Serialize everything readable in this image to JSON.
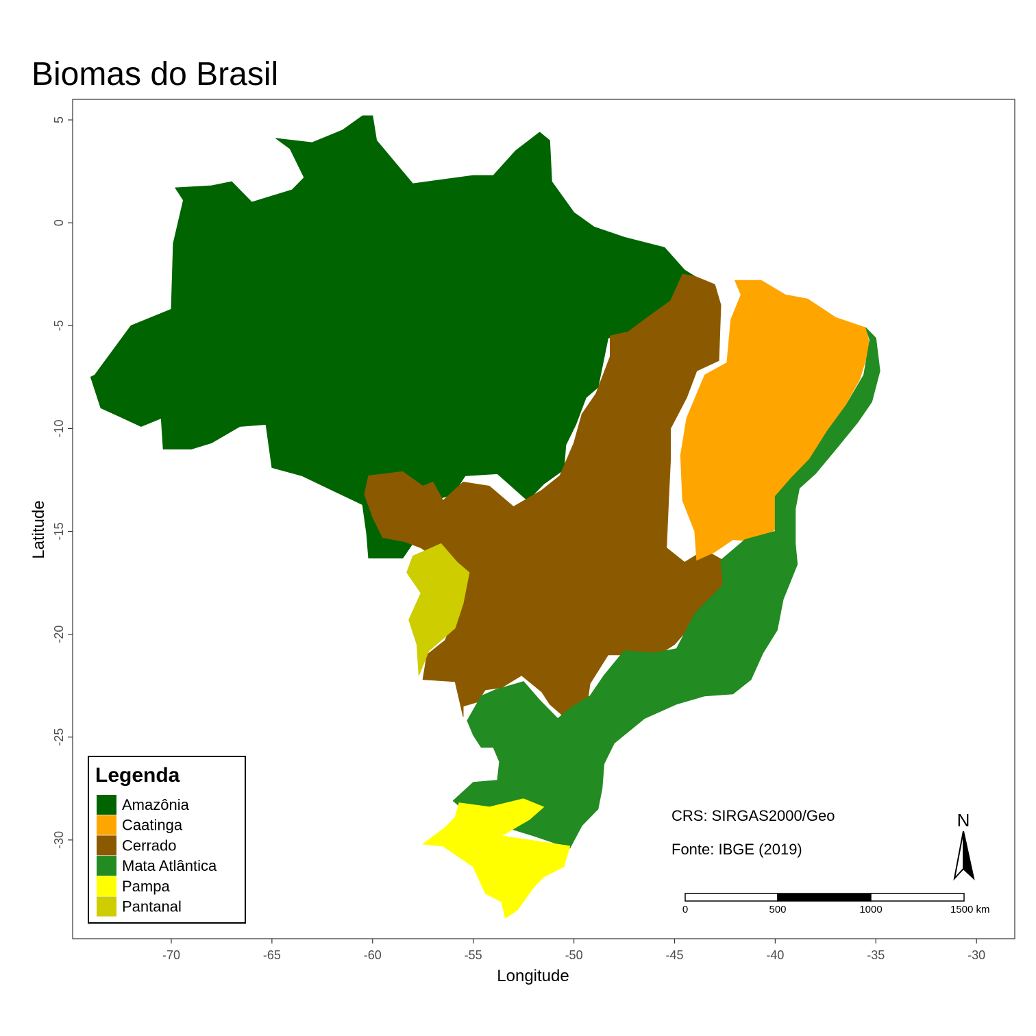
{
  "title": "Biomas do Brasil",
  "axes": {
    "xlabel": "Longitude",
    "ylabel": "Latitude",
    "xticks": [
      -70,
      -65,
      -60,
      -55,
      -50,
      -45,
      -40,
      -35,
      -30
    ],
    "yticks": [
      5,
      0,
      -5,
      -10,
      -15,
      -20,
      -25,
      -30
    ],
    "xlim": [
      -74.9,
      -28.1
    ],
    "ylim": [
      -34.8,
      6.0
    ]
  },
  "legend": {
    "title": "Legenda",
    "items": [
      {
        "label": "Amazônia",
        "color": "#006400"
      },
      {
        "label": "Caatinga",
        "color": "#FFA500"
      },
      {
        "label": "Cerrado",
        "color": "#8B5A00"
      },
      {
        "label": "Mata Atlântica",
        "color": "#228B22"
      },
      {
        "label": "Pampa",
        "color": "#FFFF00"
      },
      {
        "label": "Pantanal",
        "color": "#CDCD00"
      }
    ]
  },
  "annotations": {
    "crs": "CRS: SIRGAS2000/Geo",
    "source": "Fonte: IBGE (2019)"
  },
  "north_arrow": {
    "label": "N"
  },
  "scale_bar": {
    "labels": [
      "0",
      "500",
      "1000",
      "1500 km"
    ]
  },
  "chart_data": {
    "type": "map",
    "title": "Biomas do Brasil",
    "xlabel": "Longitude",
    "ylabel": "Latitude",
    "xlim": [
      -74.9,
      -28.1
    ],
    "ylim": [
      -34.8,
      6.0
    ],
    "regions": [
      {
        "name": "Amazônia",
        "color": "#006400",
        "coords": [
          [
            -73.8,
            -7.4
          ],
          [
            -72.0,
            -5.0
          ],
          [
            -70.0,
            -4.2
          ],
          [
            -69.9,
            -1.0
          ],
          [
            -69.4,
            1.1
          ],
          [
            -69.8,
            1.7
          ],
          [
            -68.0,
            1.8
          ],
          [
            -67.0,
            2.0
          ],
          [
            -66.0,
            1.0
          ],
          [
            -64.0,
            1.6
          ],
          [
            -63.4,
            2.2
          ],
          [
            -64.1,
            3.6
          ],
          [
            -64.8,
            4.1
          ],
          [
            -63.0,
            3.9
          ],
          [
            -61.5,
            4.5
          ],
          [
            -60.5,
            5.2
          ],
          [
            -60.0,
            5.2
          ],
          [
            -59.8,
            4.0
          ],
          [
            -58.0,
            1.9
          ],
          [
            -55.0,
            2.3
          ],
          [
            -54.0,
            2.3
          ],
          [
            -52.9,
            3.5
          ],
          [
            -51.7,
            4.4
          ],
          [
            -51.2,
            4.0
          ],
          [
            -51.1,
            2.0
          ],
          [
            -50.0,
            0.5
          ],
          [
            -49.0,
            -0.2
          ],
          [
            -47.5,
            -0.7
          ],
          [
            -45.5,
            -1.2
          ],
          [
            -44.5,
            -2.3
          ],
          [
            -44.0,
            -2.6
          ],
          [
            -44.6,
            -3.2
          ],
          [
            -45.4,
            -4.2
          ],
          [
            -46.4,
            -5.2
          ],
          [
            -47.4,
            -5.4
          ],
          [
            -48.3,
            -5.6
          ],
          [
            -48.8,
            -8.0
          ],
          [
            -49.4,
            -8.5
          ],
          [
            -49.9,
            -9.8
          ],
          [
            -50.4,
            -10.8
          ],
          [
            -50.5,
            -12.0
          ],
          [
            -51.5,
            -12.7
          ],
          [
            -52.3,
            -13.5
          ],
          [
            -53.8,
            -12.2
          ],
          [
            -55.4,
            -12.3
          ],
          [
            -56.0,
            -13.2
          ],
          [
            -57.0,
            -13.5
          ],
          [
            -57.9,
            -13.0
          ],
          [
            -58.2,
            -13.5
          ],
          [
            -57.8,
            -15.3
          ],
          [
            -58.5,
            -16.3
          ],
          [
            -60.2,
            -16.3
          ],
          [
            -60.3,
            -15.1
          ],
          [
            -60.5,
            -13.7
          ],
          [
            -62.0,
            -13.0
          ],
          [
            -63.5,
            -12.3
          ],
          [
            -65.0,
            -11.9
          ],
          [
            -65.3,
            -9.8
          ],
          [
            -66.6,
            -9.9
          ],
          [
            -68.0,
            -10.7
          ],
          [
            -69.0,
            -11.0
          ],
          [
            -70.4,
            -11.0
          ],
          [
            -70.5,
            -9.5
          ],
          [
            -71.5,
            -9.9
          ],
          [
            -72.6,
            -9.4
          ],
          [
            -73.5,
            -9.0
          ],
          [
            -74.0,
            -7.5
          ]
        ]
      },
      {
        "name": "Cerrado",
        "color": "#8B5A00",
        "coords": [
          [
            -60.2,
            -12.3
          ],
          [
            -58.5,
            -12.1
          ],
          [
            -57.5,
            -12.8
          ],
          [
            -57.0,
            -12.6
          ],
          [
            -56.5,
            -13.5
          ],
          [
            -55.5,
            -12.6
          ],
          [
            -54.2,
            -12.8
          ],
          [
            -53.0,
            -13.8
          ],
          [
            -51.6,
            -13.0
          ],
          [
            -50.7,
            -12.3
          ],
          [
            -50.0,
            -10.7
          ],
          [
            -49.6,
            -9.3
          ],
          [
            -48.9,
            -8.3
          ],
          [
            -48.2,
            -6.5
          ],
          [
            -48.2,
            -5.5
          ],
          [
            -47.3,
            -5.3
          ],
          [
            -46.2,
            -4.5
          ],
          [
            -45.2,
            -3.8
          ],
          [
            -44.6,
            -2.5
          ],
          [
            -44.0,
            -2.6
          ],
          [
            -43.0,
            -3.0
          ],
          [
            -42.7,
            -4.0
          ],
          [
            -42.8,
            -6.7
          ],
          [
            -43.9,
            -7.2
          ],
          [
            -44.4,
            -8.5
          ],
          [
            -45.2,
            -10.0
          ],
          [
            -45.2,
            -11.5
          ],
          [
            -45.3,
            -13.5
          ],
          [
            -45.4,
            -15.8
          ],
          [
            -44.5,
            -16.5
          ],
          [
            -43.5,
            -15.9
          ],
          [
            -42.6,
            -16.4
          ],
          [
            -42.5,
            -17.5
          ],
          [
            -42.9,
            -18.6
          ],
          [
            -44.2,
            -19.6
          ],
          [
            -45.0,
            -20.5
          ],
          [
            -46.3,
            -21.3
          ],
          [
            -47.2,
            -21.0
          ],
          [
            -48.3,
            -21.0
          ],
          [
            -49.2,
            -22.4
          ],
          [
            -49.3,
            -23.1
          ],
          [
            -50.0,
            -23.5
          ],
          [
            -50.5,
            -24.0
          ],
          [
            -51.2,
            -23.4
          ],
          [
            -51.6,
            -22.8
          ],
          [
            -52.6,
            -22.0
          ],
          [
            -53.6,
            -22.6
          ],
          [
            -54.4,
            -22.7
          ],
          [
            -54.8,
            -23.3
          ],
          [
            -55.5,
            -23.5
          ],
          [
            -55.5,
            -24.0
          ],
          [
            -55.9,
            -22.3
          ],
          [
            -57.5,
            -22.2
          ],
          [
            -57.3,
            -21.0
          ],
          [
            -56.4,
            -20.3
          ],
          [
            -56.0,
            -19.4
          ],
          [
            -55.5,
            -18.0
          ],
          [
            -55.9,
            -17.0
          ],
          [
            -57.0,
            -16.2
          ],
          [
            -57.6,
            -15.8
          ],
          [
            -58.4,
            -15.5
          ],
          [
            -59.5,
            -15.3
          ],
          [
            -60.0,
            -14.3
          ],
          [
            -60.4,
            -13.2
          ]
        ]
      },
      {
        "name": "Caatinga",
        "color": "#FFA500",
        "coords": [
          [
            -42.0,
            -2.8
          ],
          [
            -40.7,
            -2.8
          ],
          [
            -39.5,
            -3.5
          ],
          [
            -38.4,
            -3.7
          ],
          [
            -37.0,
            -4.6
          ],
          [
            -35.5,
            -5.1
          ],
          [
            -35.3,
            -6.0
          ],
          [
            -35.8,
            -7.6
          ],
          [
            -36.6,
            -9.0
          ],
          [
            -37.6,
            -10.5
          ],
          [
            -38.4,
            -11.7
          ],
          [
            -39.2,
            -12.4
          ],
          [
            -39.8,
            -13.3
          ],
          [
            -40.0,
            -14.9
          ],
          [
            -40.8,
            -15.5
          ],
          [
            -42.1,
            -15.4
          ],
          [
            -43.0,
            -16.0
          ],
          [
            -43.9,
            -16.4
          ],
          [
            -44.0,
            -15.0
          ],
          [
            -44.6,
            -13.5
          ],
          [
            -44.7,
            -11.3
          ],
          [
            -44.4,
            -9.5
          ],
          [
            -43.5,
            -7.4
          ],
          [
            -42.4,
            -6.8
          ],
          [
            -42.2,
            -4.7
          ],
          [
            -41.7,
            -3.5
          ]
        ]
      },
      {
        "name": "Mata Atlântica",
        "color": "#228B22",
        "coords": [
          [
            -35.5,
            -5.1
          ],
          [
            -35.0,
            -5.6
          ],
          [
            -34.8,
            -7.2
          ],
          [
            -35.2,
            -8.7
          ],
          [
            -35.9,
            -9.7
          ],
          [
            -36.9,
            -10.9
          ],
          [
            -38.0,
            -12.2
          ],
          [
            -38.8,
            -12.9
          ],
          [
            -39.0,
            -13.9
          ],
          [
            -39.0,
            -15.6
          ],
          [
            -38.9,
            -16.6
          ],
          [
            -39.6,
            -18.3
          ],
          [
            -39.9,
            -19.8
          ],
          [
            -40.6,
            -20.9
          ],
          [
            -41.2,
            -22.2
          ],
          [
            -42.1,
            -22.9
          ],
          [
            -43.5,
            -23.0
          ],
          [
            -44.9,
            -23.4
          ],
          [
            -46.5,
            -24.1
          ],
          [
            -48.0,
            -25.3
          ],
          [
            -48.5,
            -26.3
          ],
          [
            -48.6,
            -27.5
          ],
          [
            -48.8,
            -28.5
          ],
          [
            -49.6,
            -29.3
          ],
          [
            -50.2,
            -30.4
          ],
          [
            -52.0,
            -29.8
          ],
          [
            -53.0,
            -29.5
          ],
          [
            -54.0,
            -29.0
          ],
          [
            -55.4,
            -28.6
          ],
          [
            -56.0,
            -28.1
          ],
          [
            -55.0,
            -27.2
          ],
          [
            -53.8,
            -27.1
          ],
          [
            -53.7,
            -26.2
          ],
          [
            -54.0,
            -25.5
          ],
          [
            -54.6,
            -25.5
          ],
          [
            -55.0,
            -24.9
          ],
          [
            -55.3,
            -24.2
          ],
          [
            -54.6,
            -23.0
          ],
          [
            -53.9,
            -22.7
          ],
          [
            -52.5,
            -22.3
          ],
          [
            -51.7,
            -23.2
          ],
          [
            -50.8,
            -24.1
          ],
          [
            -50.2,
            -23.6
          ],
          [
            -49.2,
            -23.0
          ],
          [
            -48.5,
            -22.0
          ],
          [
            -47.5,
            -20.8
          ],
          [
            -46.0,
            -20.9
          ],
          [
            -44.9,
            -20.7
          ],
          [
            -44.0,
            -19.0
          ],
          [
            -42.6,
            -17.6
          ],
          [
            -42.7,
            -16.4
          ],
          [
            -41.5,
            -15.4
          ],
          [
            -40.0,
            -15.0
          ],
          [
            -40.0,
            -13.3
          ],
          [
            -39.2,
            -12.4
          ],
          [
            -38.3,
            -11.5
          ],
          [
            -37.4,
            -10.1
          ],
          [
            -36.5,
            -8.9
          ],
          [
            -35.6,
            -7.4
          ],
          [
            -35.3,
            -5.7
          ]
        ]
      },
      {
        "name": "Pampa",
        "color": "#FFFF00",
        "coords": [
          [
            -55.7,
            -28.2
          ],
          [
            -54.2,
            -28.4
          ],
          [
            -52.5,
            -28.0
          ],
          [
            -51.5,
            -28.4
          ],
          [
            -52.2,
            -29.0
          ],
          [
            -53.6,
            -29.8
          ],
          [
            -50.2,
            -30.3
          ],
          [
            -50.5,
            -31.3
          ],
          [
            -51.5,
            -31.8
          ],
          [
            -52.0,
            -32.3
          ],
          [
            -52.8,
            -33.4
          ],
          [
            -53.4,
            -33.8
          ],
          [
            -53.6,
            -33.0
          ],
          [
            -54.4,
            -32.6
          ],
          [
            -55.0,
            -31.3
          ],
          [
            -56.5,
            -30.3
          ],
          [
            -57.5,
            -30.2
          ],
          [
            -56.4,
            -29.4
          ],
          [
            -55.9,
            -28.9
          ]
        ]
      },
      {
        "name": "Pantanal",
        "color": "#CDCD00",
        "coords": [
          [
            -58.0,
            -16.2
          ],
          [
            -56.6,
            -15.6
          ],
          [
            -55.8,
            -16.5
          ],
          [
            -55.2,
            -17.0
          ],
          [
            -55.5,
            -18.5
          ],
          [
            -55.9,
            -19.7
          ],
          [
            -56.6,
            -20.3
          ],
          [
            -57.2,
            -20.8
          ],
          [
            -57.7,
            -22.0
          ],
          [
            -57.8,
            -20.5
          ],
          [
            -58.2,
            -19.3
          ],
          [
            -57.6,
            -18.0
          ],
          [
            -58.3,
            -17.0
          ]
        ]
      }
    ]
  }
}
